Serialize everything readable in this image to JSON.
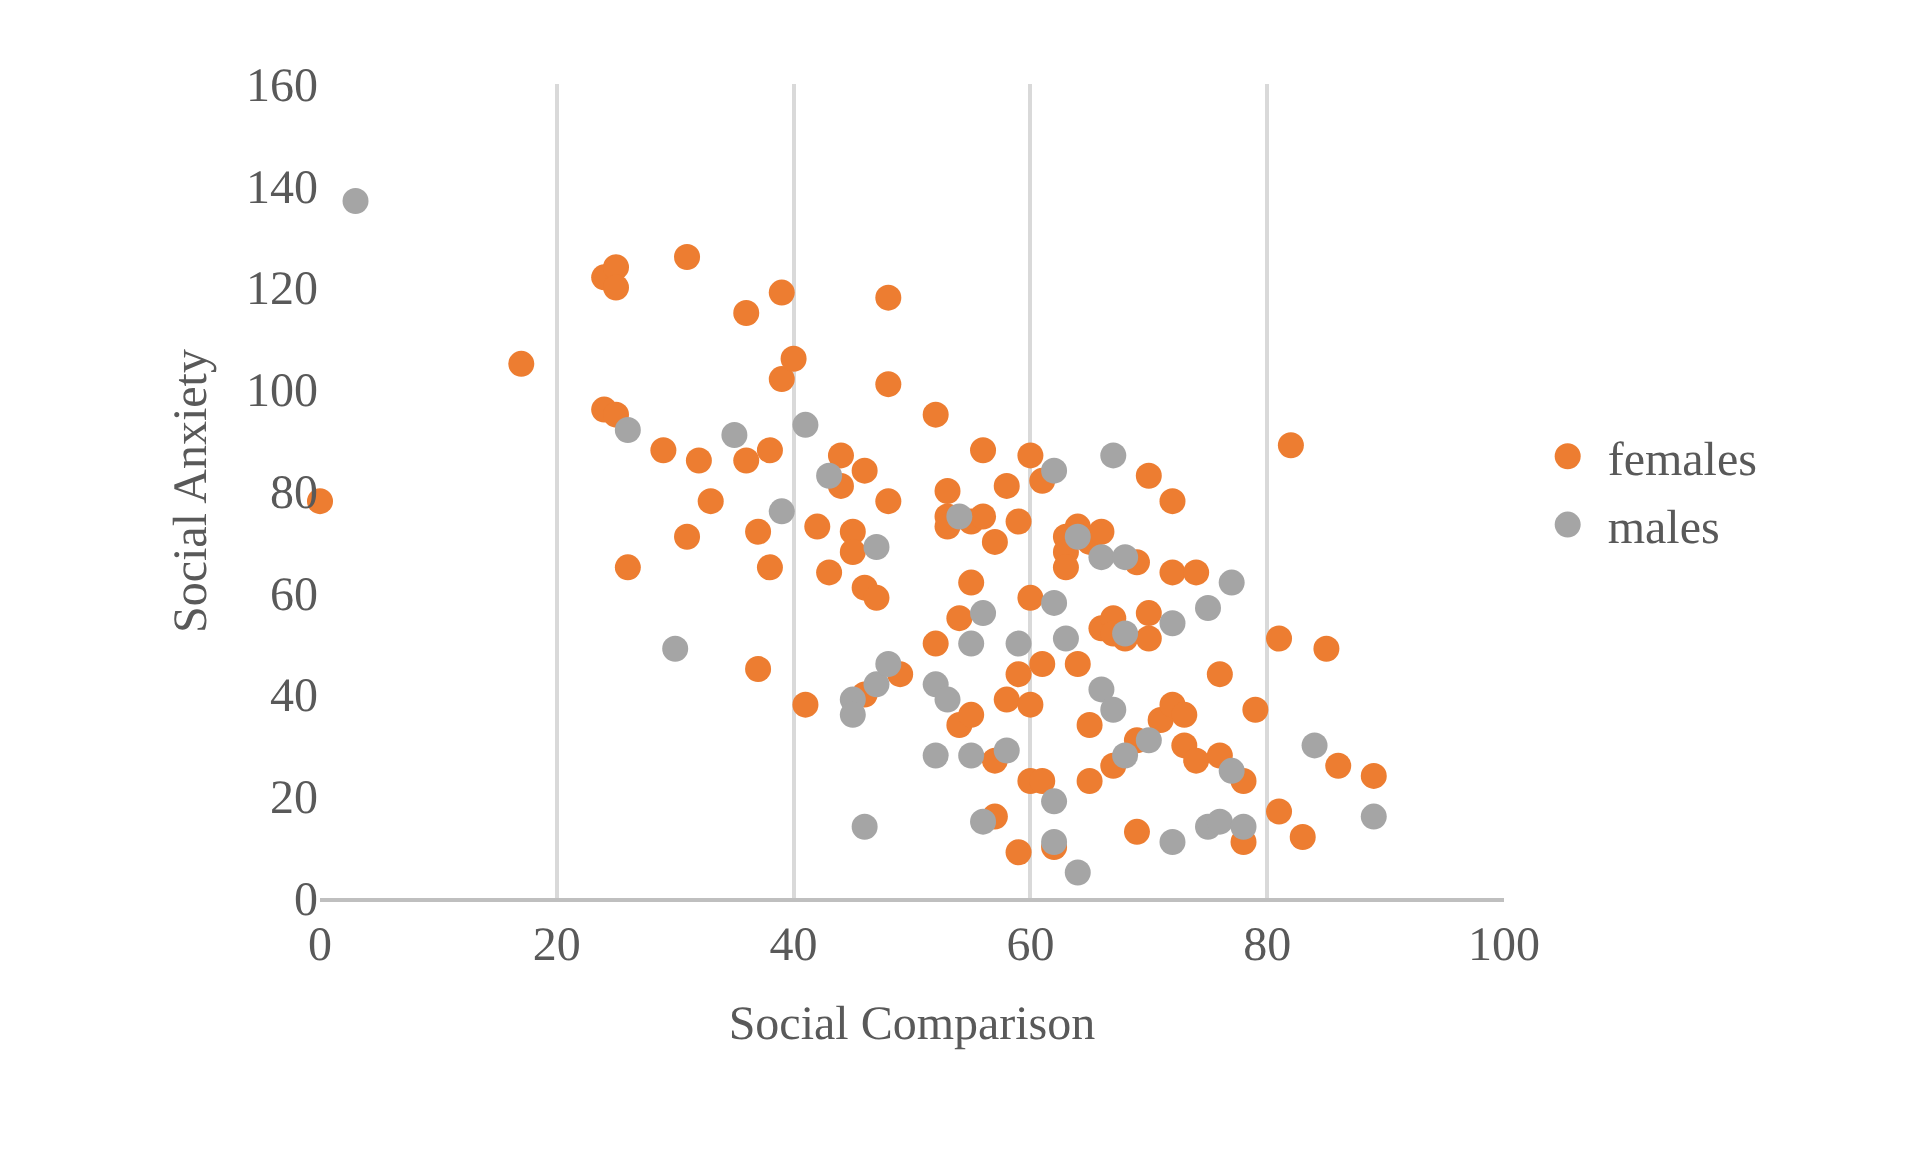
{
  "chart_data": {
    "type": "scatter",
    "xlabel": "Social Comparison",
    "ylabel": "Social Anxiety",
    "xlim": [
      0,
      100
    ],
    "xticks": [
      0,
      20,
      40,
      60,
      80,
      100
    ],
    "ylim": [
      0,
      160
    ],
    "yticks": [
      0,
      20,
      40,
      60,
      80,
      100,
      120,
      140,
      160
    ],
    "grid": "x",
    "legend": "right",
    "marker": "circle",
    "series": [
      {
        "name": "females",
        "color": "#ed7d31",
        "x": [
          0,
          17,
          24,
          25,
          25,
          31,
          24,
          25,
          26,
          29,
          31,
          32,
          33,
          36,
          36,
          37,
          37,
          38,
          38,
          39,
          39,
          40,
          41,
          42,
          43,
          44,
          44,
          45,
          45,
          46,
          46,
          46,
          47,
          48,
          48,
          48,
          49,
          52,
          52,
          53,
          53,
          53,
          54,
          54,
          55,
          55,
          55,
          56,
          56,
          57,
          57,
          57,
          58,
          58,
          59,
          59,
          59,
          60,
          60,
          60,
          60,
          61,
          61,
          61,
          62,
          63,
          63,
          63,
          64,
          64,
          65,
          65,
          65,
          66,
          66,
          67,
          67,
          67,
          68,
          69,
          69,
          69,
          70,
          70,
          70,
          71,
          72,
          72,
          72,
          73,
          73,
          74,
          74,
          76,
          76,
          78,
          78,
          79,
          81,
          81,
          82,
          83,
          85,
          86,
          89
        ],
        "values": [
          78,
          105,
          122,
          124,
          120,
          126,
          96,
          95,
          65,
          88,
          71,
          86,
          78,
          115,
          86,
          72,
          45,
          88,
          65,
          119,
          102,
          106,
          38,
          73,
          64,
          87,
          81,
          72,
          68,
          84,
          61,
          40,
          59,
          118,
          101,
          78,
          44,
          95,
          50,
          80,
          75,
          73,
          55,
          34,
          74,
          62,
          36,
          88,
          75,
          70,
          27,
          16,
          81,
          39,
          74,
          44,
          9,
          87,
          59,
          38,
          23,
          82,
          46,
          23,
          10,
          71,
          68,
          65,
          73,
          46,
          70,
          34,
          23,
          72,
          53,
          55,
          52,
          26,
          51,
          66,
          31,
          13,
          83,
          56,
          51,
          35,
          78,
          64,
          38,
          36,
          30,
          64,
          27,
          44,
          28,
          23,
          11,
          37,
          51,
          17,
          89,
          12,
          49,
          26,
          24
        ]
      },
      {
        "name": "males",
        "color": "#a5a5a5",
        "x": [
          3,
          26,
          30,
          35,
          39,
          41,
          43,
          45,
          45,
          46,
          47,
          47,
          48,
          52,
          52,
          53,
          54,
          55,
          55,
          56,
          56,
          58,
          59,
          62,
          62,
          62,
          62,
          63,
          64,
          64,
          66,
          66,
          67,
          67,
          68,
          68,
          68,
          70,
          72,
          72,
          75,
          75,
          76,
          77,
          77,
          78,
          84,
          89
        ],
        "values": [
          137,
          92,
          49,
          91,
          76,
          93,
          83,
          39,
          36,
          14,
          69,
          42,
          46,
          42,
          28,
          39,
          75,
          50,
          28,
          56,
          15,
          29,
          50,
          84,
          58,
          19,
          11,
          51,
          71,
          5,
          67,
          41,
          87,
          37,
          67,
          52,
          28,
          31,
          54,
          11,
          57,
          14,
          15,
          62,
          25,
          14,
          30,
          16
        ]
      }
    ]
  }
}
